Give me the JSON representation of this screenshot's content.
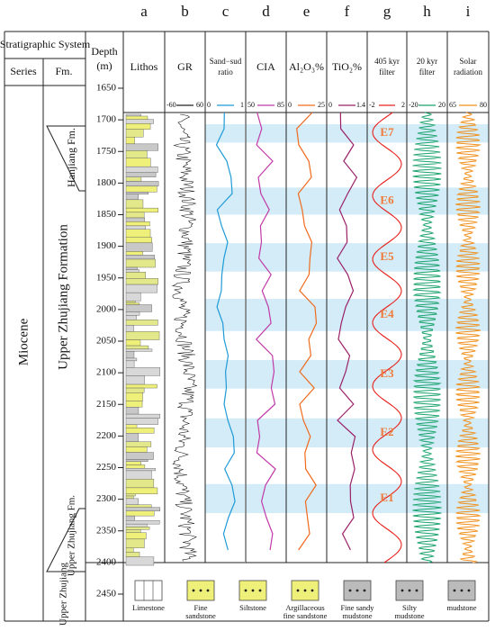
{
  "columns": [
    "a",
    "b",
    "c",
    "d",
    "e",
    "f",
    "g",
    "h",
    "i"
  ],
  "header": {
    "system": "Stratigraphic System",
    "series": "Series",
    "fm": "Fm.",
    "depth": [
      "Depth",
      "(m)"
    ],
    "tracks": [
      [
        "Lithos"
      ],
      [
        "GR"
      ],
      [
        "Sand−sud",
        "ratio"
      ],
      [
        "CIA"
      ],
      [
        "Al₂O₃%"
      ],
      [
        "TiO₂%"
      ],
      [
        "405 kyr",
        "filter"
      ],
      [
        "20 kyr",
        "filter"
      ],
      [
        "Solar",
        "radiation"
      ]
    ]
  },
  "scales": [
    null,
    {
      "min": -60,
      "max": 60,
      "color": "#222"
    },
    {
      "min": 0,
      "max": 1,
      "color": "#1e9ad6"
    },
    {
      "min": 50,
      "max": 85,
      "color": "#c13aa8"
    },
    {
      "min": 0,
      "max": 25,
      "color": "#f06a1c"
    },
    {
      "min": 0,
      "max": 1.4,
      "color": "#9a2068"
    },
    {
      "min": -2,
      "max": 2,
      "color": "#e8201c"
    },
    {
      "min": -20,
      "max": 20,
      "color": "#1aa36c"
    },
    {
      "min": 65,
      "max": 80,
      "color": "#f0901c"
    }
  ],
  "units": {
    "series": "Miocene",
    "formations": [
      "Hanjiang Fm.",
      "Upper Zhujiang Formation",
      "Upper Zhujiang Fm.",
      "Upper Zhujiang"
    ]
  },
  "depth": {
    "lim": [
      1650,
      2450
    ],
    "ticks": [
      1650,
      1700,
      1750,
      1800,
      1850,
      1900,
      1950,
      2000,
      2050,
      2100,
      2150,
      2200,
      2250,
      2300,
      2350,
      2400,
      2450
    ]
  },
  "cycles": [
    {
      "label": "E7",
      "top": 1707,
      "base": 1736
    },
    {
      "label": "E6",
      "top": 1807,
      "base": 1850
    },
    {
      "label": "E5",
      "top": 1895,
      "base": 1940
    },
    {
      "label": "E4",
      "top": 1983,
      "base": 2034
    },
    {
      "label": "E3",
      "top": 2080,
      "base": 2125
    },
    {
      "label": "E2",
      "top": 2172,
      "base": 2218
    },
    {
      "label": "E1",
      "top": 2276,
      "base": 2322
    }
  ],
  "legend": [
    [
      "Limestone"
    ],
    [
      "Fine",
      "sandstone"
    ],
    [
      "Siltstone"
    ],
    [
      "Argillaceous",
      "fine sandstone"
    ],
    [
      "Fine sandy",
      "mudstone"
    ],
    [
      "Silty",
      "mudstone"
    ],
    [
      "mudstone"
    ]
  ]
}
